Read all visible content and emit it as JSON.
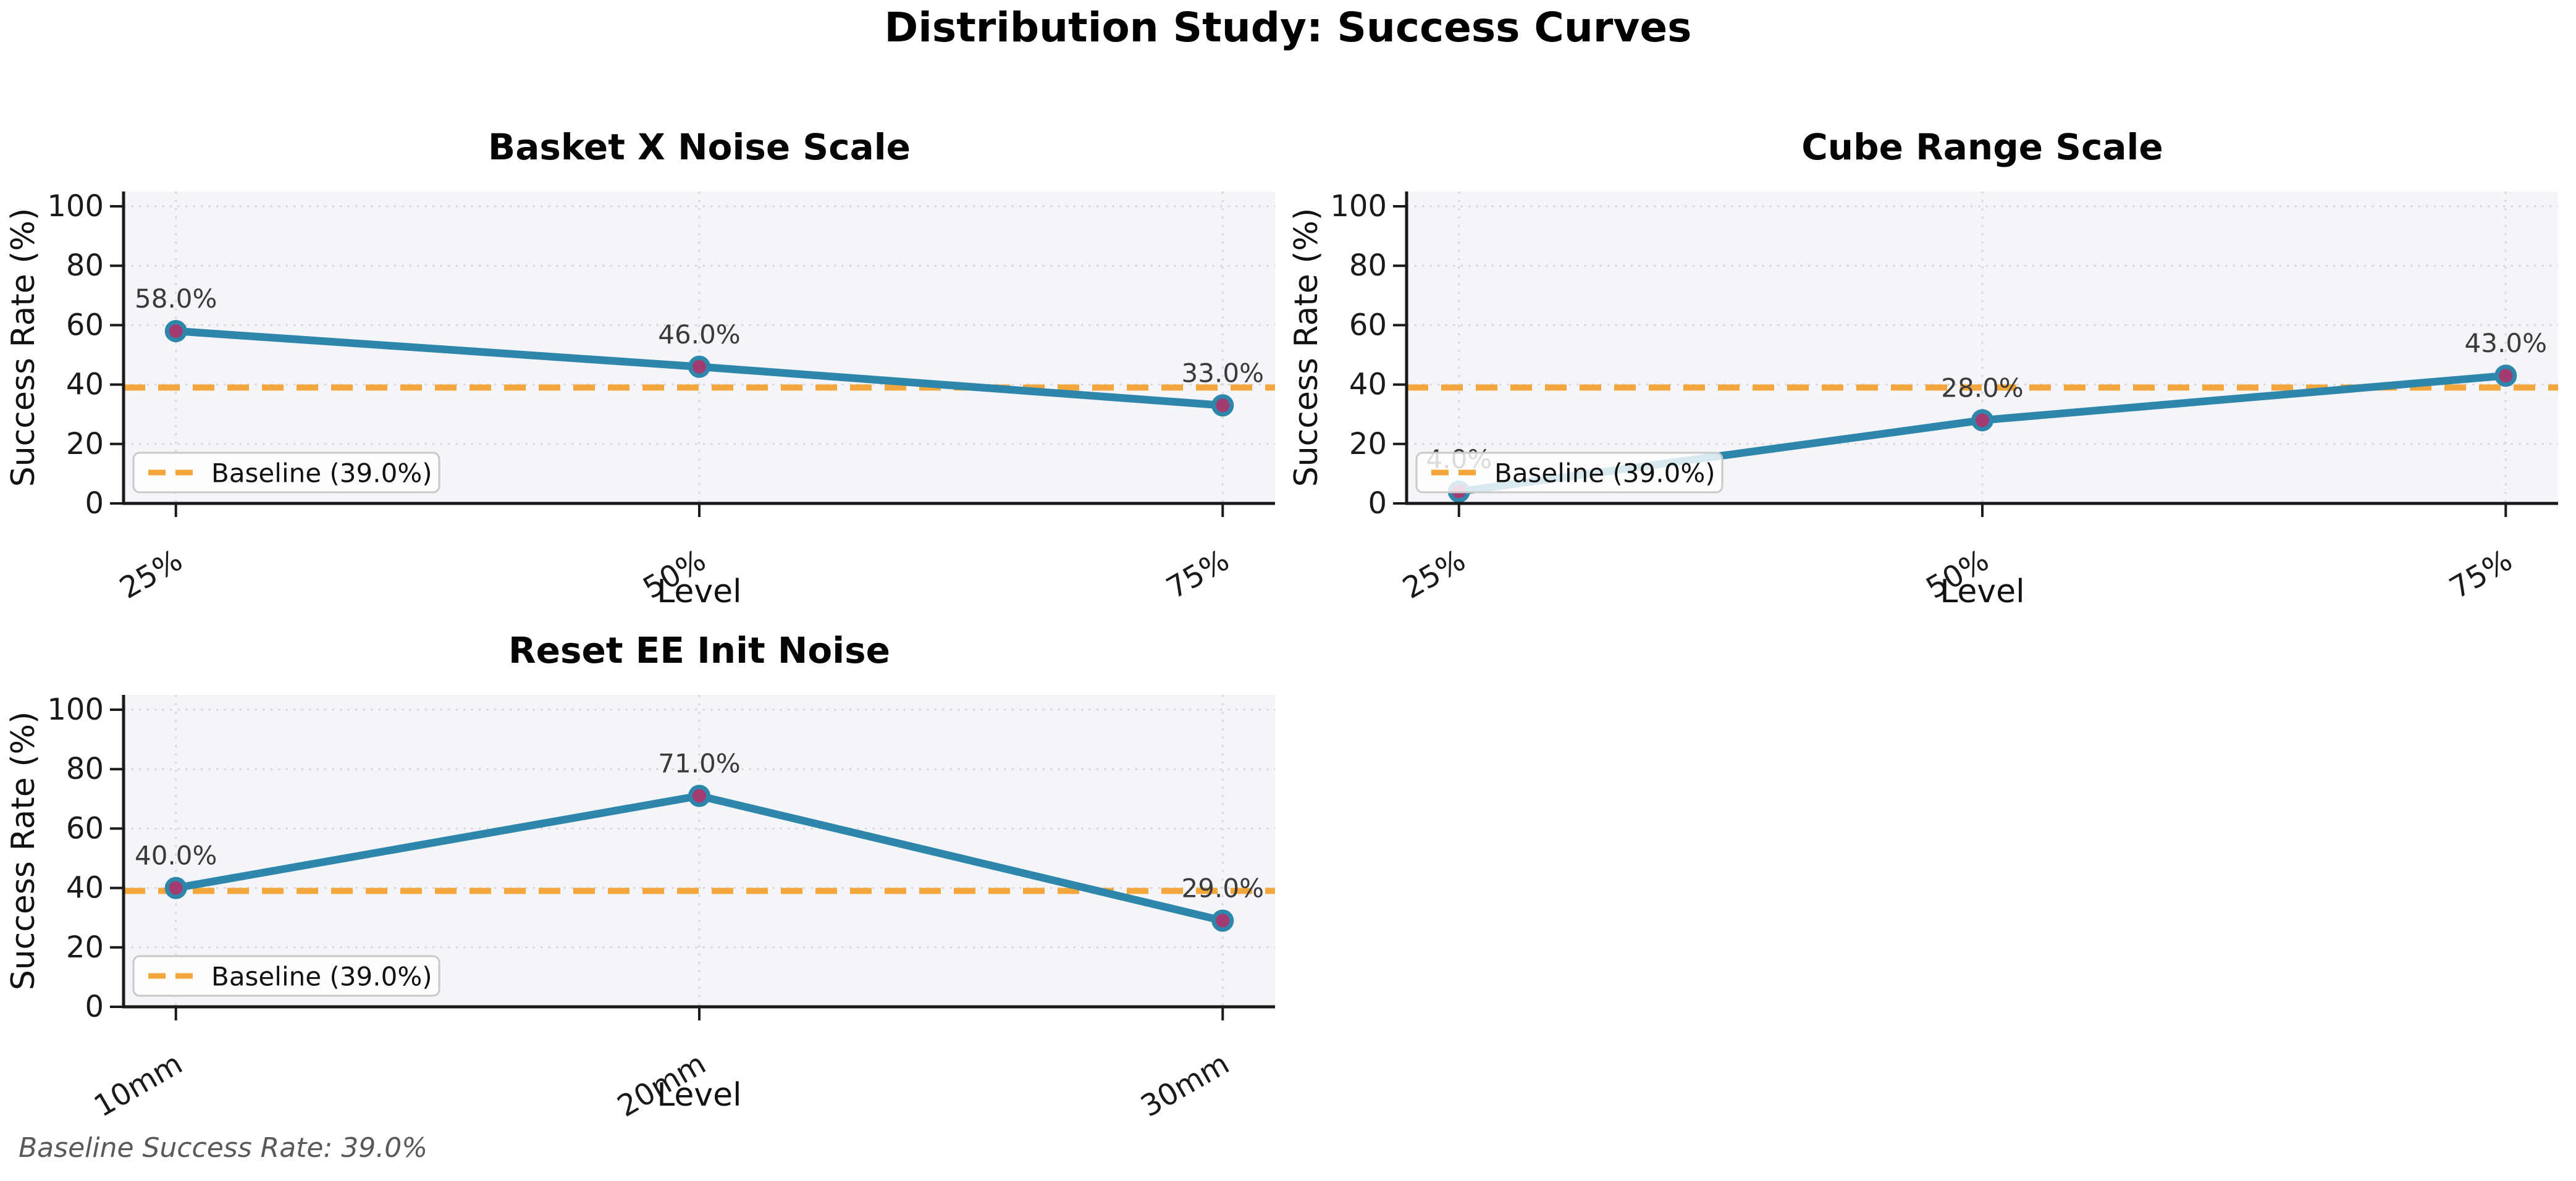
{
  "figure": {
    "title": "Distribution Study: Success Curves",
    "footnote": "Baseline Success Rate: 39.0%",
    "baseline": {
      "value": 39.0,
      "label": "Baseline (39.0%)"
    }
  },
  "style": {
    "line_color": "#2E86AB",
    "marker_color": "#A23B72",
    "baseline_color": "#F2A63C",
    "plot_bg": "#F4F5F8",
    "grid_color": "#D8D8DC",
    "spine_color": "#1a1a1a",
    "legend_border": "#c9c9c9",
    "annotation_color": "#3a3a3a",
    "footnote_color": "#595959"
  },
  "chart_data": [
    {
      "type": "line",
      "title": "Basket X Noise Scale",
      "xlabel": "Level",
      "ylabel": "Success Rate (%)",
      "categories": [
        "25%",
        "50%",
        "75%"
      ],
      "values": [
        58.0,
        46.0,
        33.0
      ],
      "point_labels": [
        "58.0%",
        "46.0%",
        "33.0%"
      ],
      "baseline": 39.0,
      "ylim": [
        0,
        105
      ],
      "yticks": [
        0,
        20,
        40,
        60,
        80,
        100
      ],
      "grid": true,
      "legend": [
        "Baseline (39.0%)"
      ],
      "legend_position": "lower left"
    },
    {
      "type": "line",
      "title": "Cube Range Scale",
      "xlabel": "Level",
      "ylabel": "Success Rate (%)",
      "categories": [
        "25%",
        "50%",
        "75%"
      ],
      "values": [
        4.0,
        28.0,
        43.0
      ],
      "point_labels": [
        "4.0%",
        "28.0%",
        "43.0%"
      ],
      "baseline": 39.0,
      "ylim": [
        0,
        105
      ],
      "yticks": [
        0,
        20,
        40,
        60,
        80,
        100
      ],
      "grid": true,
      "legend": [
        "Baseline (39.0%)"
      ],
      "legend_position": "lower left"
    },
    {
      "type": "line",
      "title": "Reset EE Init Noise",
      "xlabel": "Level",
      "ylabel": "Success Rate (%)",
      "categories": [
        "10mm",
        "20mm",
        "30mm"
      ],
      "values": [
        40.0,
        71.0,
        29.0
      ],
      "point_labels": [
        "40.0%",
        "71.0%",
        "29.0%"
      ],
      "baseline": 39.0,
      "ylim": [
        0,
        105
      ],
      "yticks": [
        0,
        20,
        40,
        60,
        80,
        100
      ],
      "grid": true,
      "legend": [
        "Baseline (39.0%)"
      ],
      "legend_position": "lower left"
    }
  ]
}
